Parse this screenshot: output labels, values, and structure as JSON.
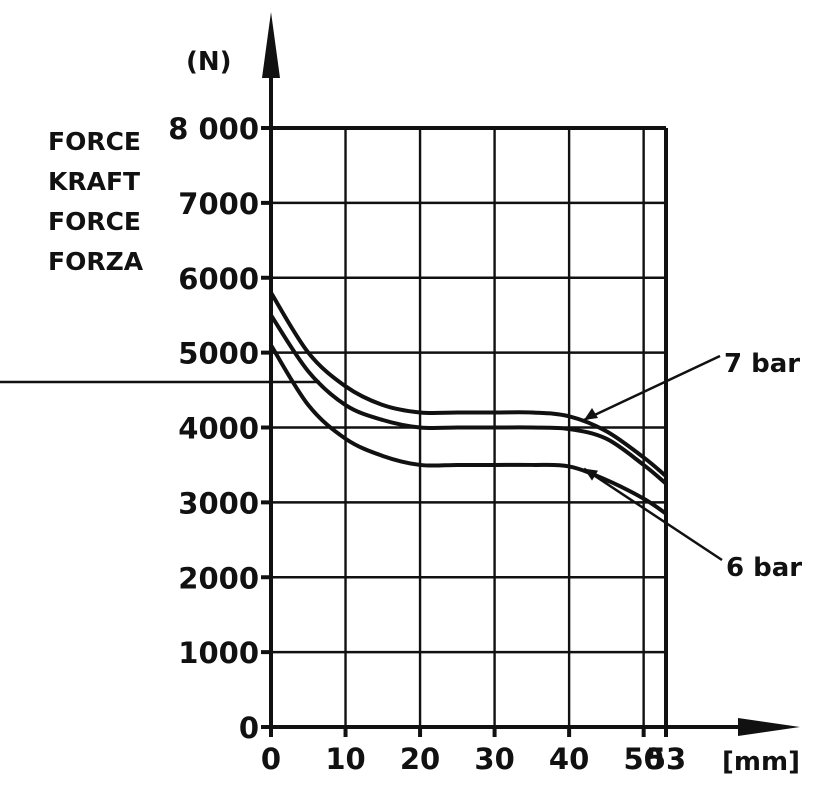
{
  "chart_data": {
    "type": "line",
    "y_unit": "(N)",
    "x_unit": "[mm]",
    "ylabel_lines": [
      "FORCE",
      "KRAFT",
      "FORCE",
      "FORZA"
    ],
    "x_ticks": [
      "0",
      "10",
      "20",
      "30",
      "40",
      "50",
      "53"
    ],
    "x_tick_values": [
      0,
      10,
      20,
      30,
      40,
      50,
      53
    ],
    "y_ticks": [
      "0",
      "1000",
      "2000",
      "3000",
      "4000",
      "5000",
      "6000",
      "7000",
      "8 000"
    ],
    "y_tick_values": [
      0,
      1000,
      2000,
      3000,
      4000,
      5000,
      6000,
      7000,
      8000
    ],
    "xlim": [
      0,
      53
    ],
    "ylim": [
      0,
      8000
    ],
    "grid": true,
    "x": [
      0,
      5,
      10,
      15,
      20,
      25,
      30,
      35,
      40,
      45,
      50,
      53
    ],
    "series": [
      {
        "values": [
          5800,
          5000,
          4550,
          4300,
          4200,
          4200,
          4200,
          4200,
          4150,
          3950,
          3600,
          3350
        ]
      },
      {
        "values": [
          5500,
          4750,
          4300,
          4100,
          4000,
          4000,
          4000,
          4000,
          3980,
          3850,
          3500,
          3250
        ]
      },
      {
        "values": [
          5100,
          4300,
          3850,
          3620,
          3500,
          3500,
          3500,
          3500,
          3480,
          3300,
          3050,
          2850
        ]
      }
    ],
    "annotations": [
      "7 bar",
      "6 bar"
    ]
  }
}
